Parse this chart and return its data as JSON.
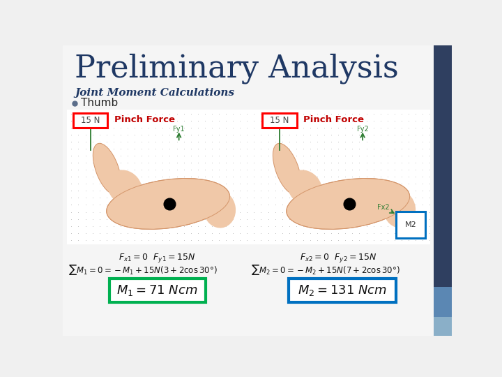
{
  "title": "Preliminary Analysis",
  "subtitle": "Joint Moment Calculations",
  "bullet": "Thumb",
  "pinch_label": "Pinch Force",
  "force_label": "15 N",
  "eq1": "$F_{x1} = 0 \\ \\ F_{y1} = 15N$",
  "eq2": "$F_{x2} = 0 \\ \\ F_{y2} = 15N$",
  "sum1": "$\\sum M_1 = 0 = -M_1 + 15N\\left(3 + 2\\cos 30°\\right)$",
  "sum2": "$\\sum M_2 = 0 = -M_2 + 15N\\left(7 + 2\\cos 30°\\right)$",
  "result1": "$M_1 = 71 \\ Ncm$",
  "result2": "$M_2 = 131 \\ Ncm$",
  "bg_color": "#f0f0f0",
  "title_color": "#1F3864",
  "subtitle_color": "#1F3864",
  "bullet_color": "#5B6E8A",
  "pinch_color": "#C00000",
  "panel_bg": "#ffffff",
  "right_panel_color": "#2F3F60",
  "green_box_color": "#00B050",
  "blue_box_color": "#0070C0",
  "red_box_color": "#FF0000",
  "accent1_color": "#5B87B3",
  "accent2_color": "#8AAFC8",
  "hand_color": "#F0C8A8",
  "hand_edge_color": "#D4956A",
  "fy_color": "#2E7D32",
  "dot_color": "#BBBBBB"
}
